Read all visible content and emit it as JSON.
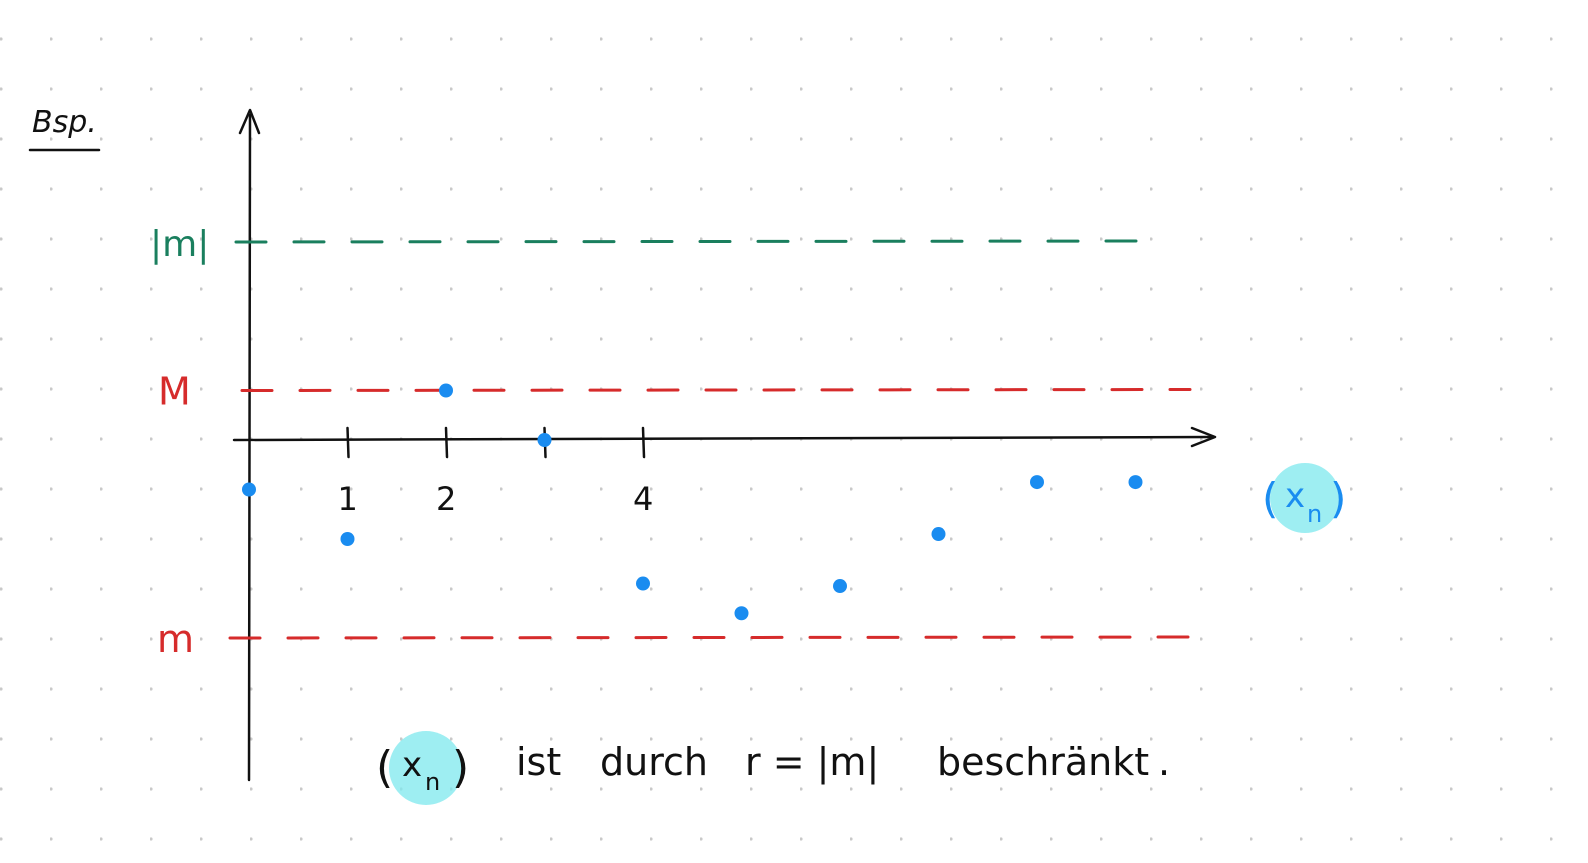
{
  "heading": "Bsp.",
  "bounds": {
    "abs_m": {
      "label": "|m|",
      "value": 4,
      "color": "#1a7f5e"
    },
    "upper_M": {
      "label": "M",
      "value": 1,
      "color": "#d62b2b"
    },
    "lower_m": {
      "label": "m",
      "value": -4,
      "color": "#d62b2b"
    }
  },
  "axis_ticks": [
    {
      "value": 1,
      "label": "1"
    },
    {
      "value": 2,
      "label": "2"
    },
    {
      "value": 3,
      "label": ""
    },
    {
      "value": 4,
      "label": "4"
    }
  ],
  "sequence": {
    "label_open": "(",
    "label_var": "x",
    "label_sub": "n",
    "label_close": ")",
    "point_color": "#1a8cf0",
    "highlight_color": "#7ee8ee",
    "points": [
      {
        "n": 0,
        "x": -1.0
      },
      {
        "n": 1,
        "x": -2.0
      },
      {
        "n": 2,
        "x": 1.0
      },
      {
        "n": 3,
        "x": 0.0
      },
      {
        "n": 4,
        "x": -2.9
      },
      {
        "n": 5,
        "x": -3.5
      },
      {
        "n": 6,
        "x": -2.95
      },
      {
        "n": 7,
        "x": -1.9
      },
      {
        "n": 8,
        "x": -0.85
      },
      {
        "n": 9,
        "x": -0.85
      }
    ]
  },
  "statement": {
    "seq_open": "(",
    "seq_var": "x",
    "seq_sub": "n",
    "seq_close": ")",
    "ist": "ist",
    "durch": "durch",
    "formula": "r = |m|",
    "beschraenkt": "beschränkt",
    "period": "."
  }
}
